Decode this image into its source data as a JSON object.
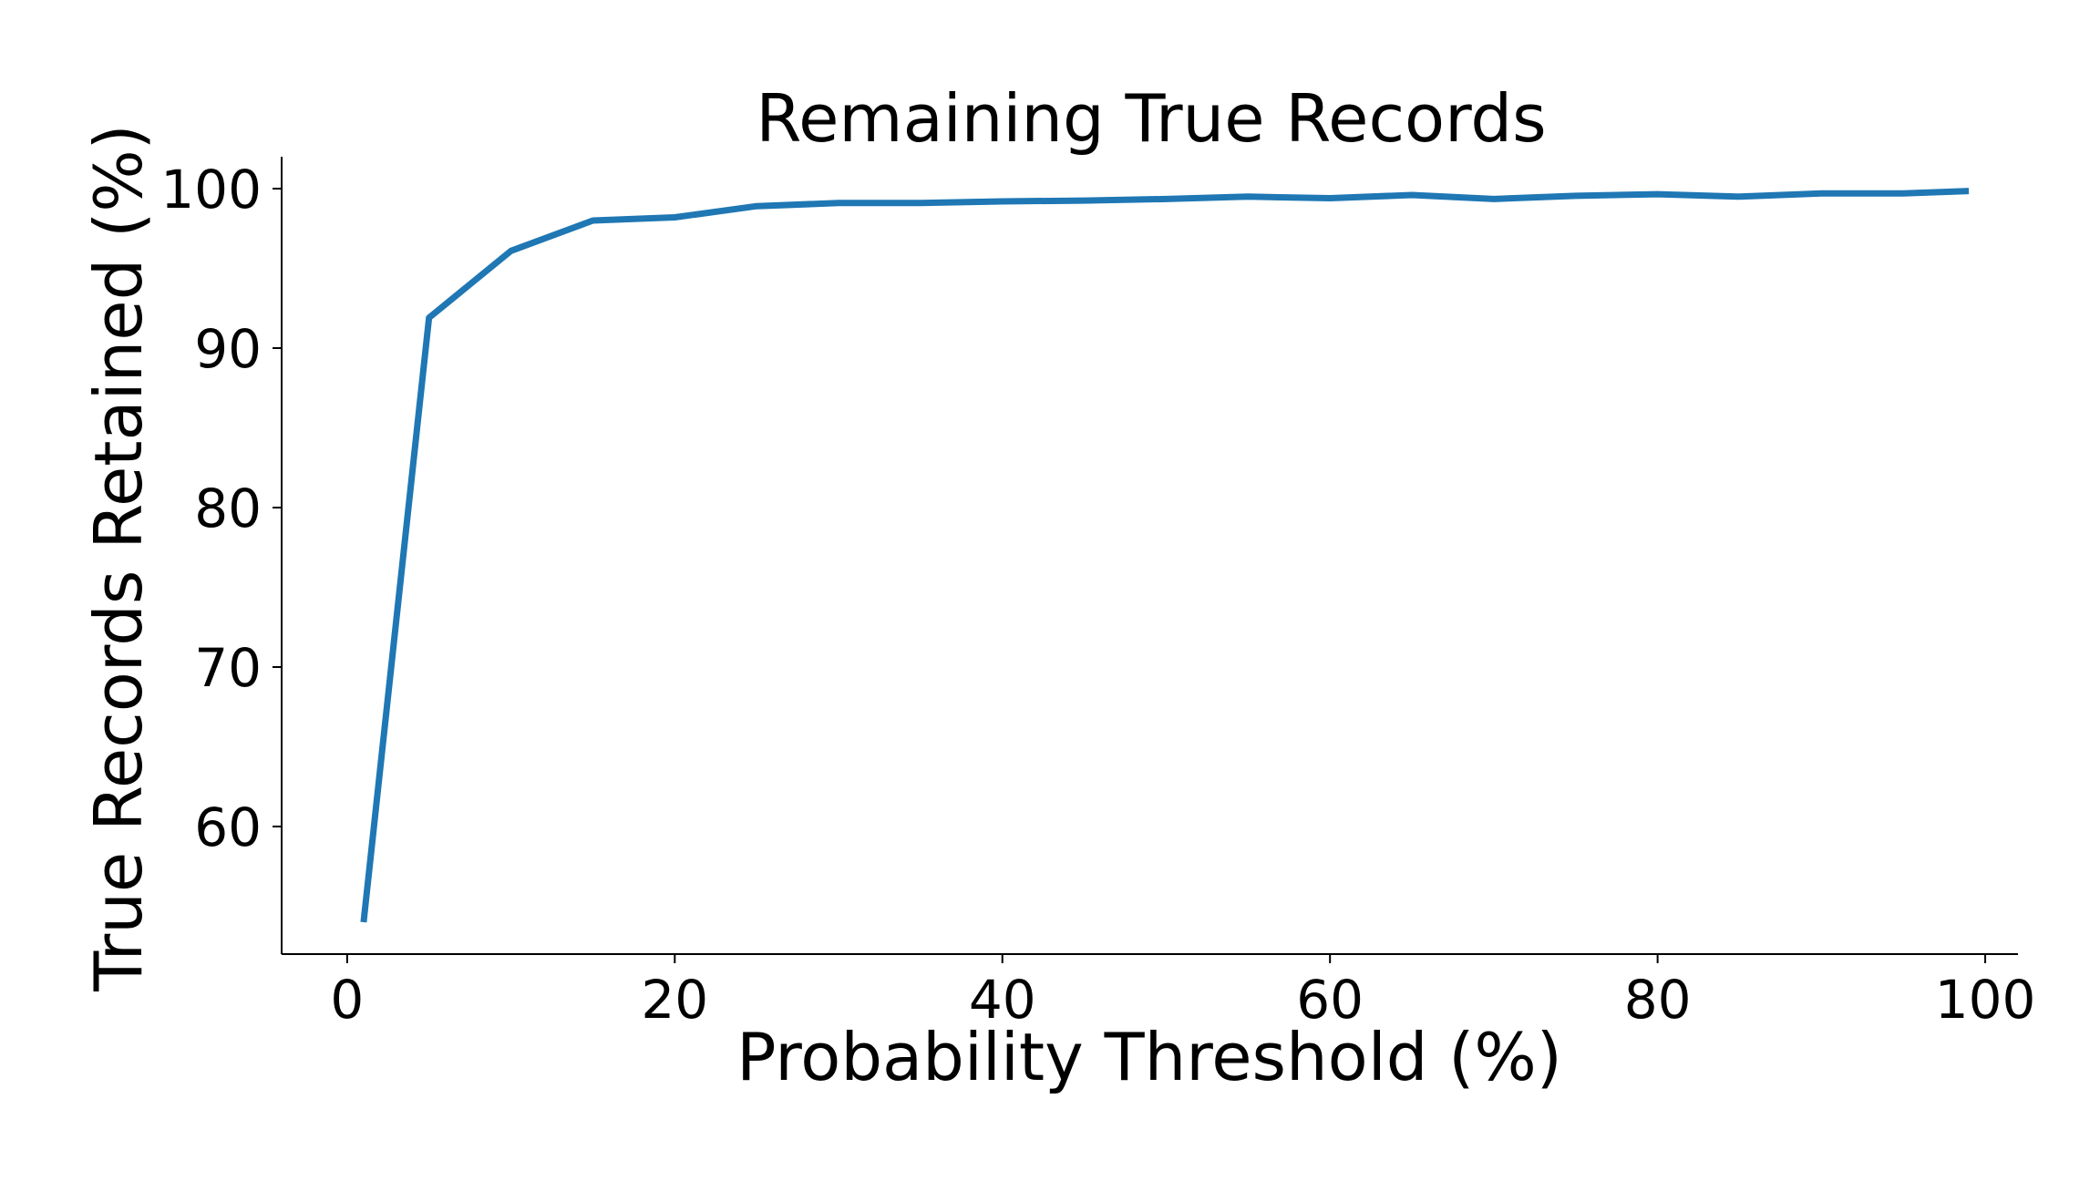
{
  "chart_data": {
    "type": "line",
    "title": "Remaining True Records",
    "xlabel": "Probability Threshold (%)",
    "ylabel": "True Records Retained (%)",
    "xlim": [
      -4,
      102
    ],
    "ylim": [
      52,
      102
    ],
    "xticks": [
      0,
      20,
      40,
      60,
      80,
      100
    ],
    "yticks": [
      60,
      70,
      80,
      90,
      100
    ],
    "grid": false,
    "series_color": "#1f77b4",
    "series": [
      {
        "x": [
          1,
          5,
          10,
          15,
          20,
          25,
          30,
          35,
          40,
          45,
          50,
          55,
          60,
          65,
          70,
          75,
          80,
          85,
          90,
          95,
          99
        ],
        "y": [
          54.0,
          91.9,
          96.1,
          98.0,
          98.2,
          98.9,
          99.1,
          99.1,
          99.2,
          99.25,
          99.35,
          99.5,
          99.4,
          99.6,
          99.35,
          99.55,
          99.65,
          99.5,
          99.7,
          99.7,
          99.85
        ]
      }
    ]
  }
}
